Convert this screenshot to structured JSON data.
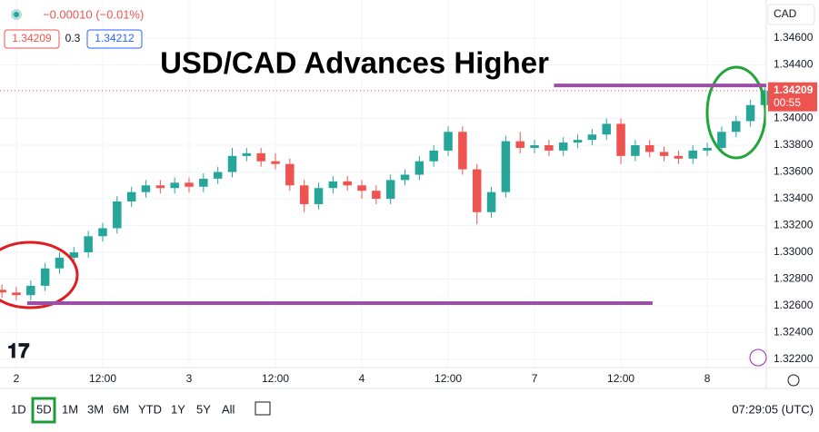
{
  "header": {
    "change": "−0.00010 (−0.01%)",
    "bid": "1.34209",
    "spread": "0.3",
    "ask": "1.34212",
    "currency": "CAD"
  },
  "chart_data": {
    "type": "candlestick",
    "title": "USD/CAD Advances Higher",
    "x": [
      -2,
      0,
      2,
      4,
      6,
      8,
      10,
      12,
      14,
      16,
      18,
      20,
      22,
      24,
      26,
      28,
      30,
      32,
      34,
      36,
      38,
      40,
      42,
      44,
      46,
      48,
      50,
      52,
      54,
      56,
      58,
      60,
      62,
      64,
      66,
      68,
      70,
      72,
      74,
      76,
      78,
      80,
      82,
      84,
      86,
      88,
      90,
      92,
      94,
      96,
      98,
      100,
      102,
      104
    ],
    "open": [
      1.3272,
      1.327,
      1.3268,
      1.3275,
      1.3288,
      1.3296,
      1.33,
      1.3312,
      1.3318,
      1.3338,
      1.3345,
      1.335,
      1.3348,
      1.3352,
      1.3349,
      1.3355,
      1.336,
      1.3372,
      1.3374,
      1.3368,
      1.3366,
      1.335,
      1.3336,
      1.3348,
      1.3353,
      1.335,
      1.3346,
      1.334,
      1.3354,
      1.3358,
      1.3368,
      1.3376,
      1.339,
      1.3362,
      1.333,
      1.3345,
      1.3383,
      1.3378,
      1.338,
      1.3376,
      1.3382,
      1.3384,
      1.3388,
      1.3396,
      1.3372,
      1.338,
      1.3375,
      1.3372,
      1.337,
      1.3376,
      1.3378,
      1.339,
      1.3398,
      1.341
    ],
    "high": [
      1.3276,
      1.3274,
      1.3279,
      1.3292,
      1.33,
      1.3304,
      1.3316,
      1.3322,
      1.3342,
      1.3349,
      1.3354,
      1.3354,
      1.3356,
      1.3356,
      1.3359,
      1.3364,
      1.3378,
      1.3378,
      1.3378,
      1.3374,
      1.337,
      1.3354,
      1.3352,
      1.3357,
      1.3357,
      1.3354,
      1.335,
      1.3358,
      1.3362,
      1.3372,
      1.338,
      1.3394,
      1.3394,
      1.3366,
      1.3349,
      1.3387,
      1.339,
      1.3384,
      1.3384,
      1.3386,
      1.3388,
      1.3392,
      1.34,
      1.34,
      1.3384,
      1.3384,
      1.3379,
      1.3376,
      1.338,
      1.3382,
      1.3394,
      1.3402,
      1.3414,
      1.3423
    ],
    "low": [
      1.3266,
      1.3264,
      1.3264,
      1.3271,
      1.3284,
      1.3292,
      1.3296,
      1.3308,
      1.3314,
      1.3334,
      1.3341,
      1.3344,
      1.3344,
      1.3345,
      1.3345,
      1.3351,
      1.3356,
      1.3368,
      1.3364,
      1.3362,
      1.3346,
      1.333,
      1.3332,
      1.3344,
      1.3346,
      1.334,
      1.3336,
      1.3336,
      1.335,
      1.3354,
      1.3364,
      1.3372,
      1.3358,
      1.3321,
      1.3326,
      1.3341,
      1.3374,
      1.3374,
      1.3372,
      1.3372,
      1.3378,
      1.338,
      1.3384,
      1.3366,
      1.3368,
      1.3371,
      1.3368,
      1.3366,
      1.3366,
      1.3372,
      1.3374,
      1.3386,
      1.3394,
      1.3406
    ],
    "close": [
      1.327,
      1.3268,
      1.3275,
      1.3288,
      1.3296,
      1.33,
      1.3312,
      1.3318,
      1.3338,
      1.3345,
      1.335,
      1.3348,
      1.3352,
      1.3349,
      1.3355,
      1.336,
      1.3372,
      1.3374,
      1.3368,
      1.3366,
      1.335,
      1.3336,
      1.3348,
      1.3353,
      1.335,
      1.3346,
      1.334,
      1.3354,
      1.3358,
      1.3368,
      1.3376,
      1.339,
      1.3362,
      1.333,
      1.3345,
      1.3383,
      1.3378,
      1.338,
      1.3376,
      1.3382,
      1.3384,
      1.3388,
      1.3396,
      1.3372,
      1.338,
      1.3375,
      1.3372,
      1.337,
      1.3376,
      1.3378,
      1.339,
      1.3398,
      1.341,
      1.34209
    ],
    "up_color": "#26a69a",
    "down_color": "#ef5350",
    "xlim": [
      -2.27,
      104.2
    ],
    "ylim": [
      1.32139,
      1.34885
    ],
    "xticks": [
      {
        "value": 0,
        "label": "2"
      },
      {
        "value": 12,
        "label": "12:00"
      },
      {
        "value": 24,
        "label": "3"
      },
      {
        "value": 36,
        "label": "12:00"
      },
      {
        "value": 48,
        "label": "4"
      },
      {
        "value": 60,
        "label": "12:00"
      },
      {
        "value": 72,
        "label": "7"
      },
      {
        "value": 84,
        "label": "12:00"
      },
      {
        "value": 96,
        "label": "8"
      }
    ],
    "yticks": [
      {
        "value": 1.346,
        "label": "1.34600"
      },
      {
        "value": 1.344,
        "label": "1.34400"
      },
      {
        "value": 1.342,
        "label": "1.34200"
      },
      {
        "value": 1.34,
        "label": "1.34000"
      },
      {
        "value": 1.338,
        "label": "1.33800"
      },
      {
        "value": 1.336,
        "label": "1.33600"
      },
      {
        "value": 1.334,
        "label": "1.33400"
      },
      {
        "value": 1.332,
        "label": "1.33200"
      },
      {
        "value": 1.33,
        "label": "1.33000"
      },
      {
        "value": 1.328,
        "label": "1.32800"
      },
      {
        "value": 1.326,
        "label": "1.32600"
      },
      {
        "value": 1.324,
        "label": "1.32400"
      },
      {
        "value": 1.322,
        "label": "1.32200"
      }
    ],
    "grid": true,
    "last_price": {
      "value": 1.34209,
      "label": "1.34209",
      "countdown": "00:55"
    },
    "levels": [
      {
        "y": 1.34247,
        "x": [
          74.7,
          104.2
        ],
        "color": "#9b4ea6"
      },
      {
        "y": 1.3262,
        "x": [
          1.5,
          88.4
        ],
        "color": "#9b4ea6"
      }
    ]
  },
  "toolbar": {
    "ranges": [
      "1D",
      "5D",
      "1M",
      "3M",
      "6M",
      "YTD",
      "1Y",
      "5Y",
      "All"
    ],
    "active": "5D",
    "clock": "07:29:05 (UTC)"
  }
}
